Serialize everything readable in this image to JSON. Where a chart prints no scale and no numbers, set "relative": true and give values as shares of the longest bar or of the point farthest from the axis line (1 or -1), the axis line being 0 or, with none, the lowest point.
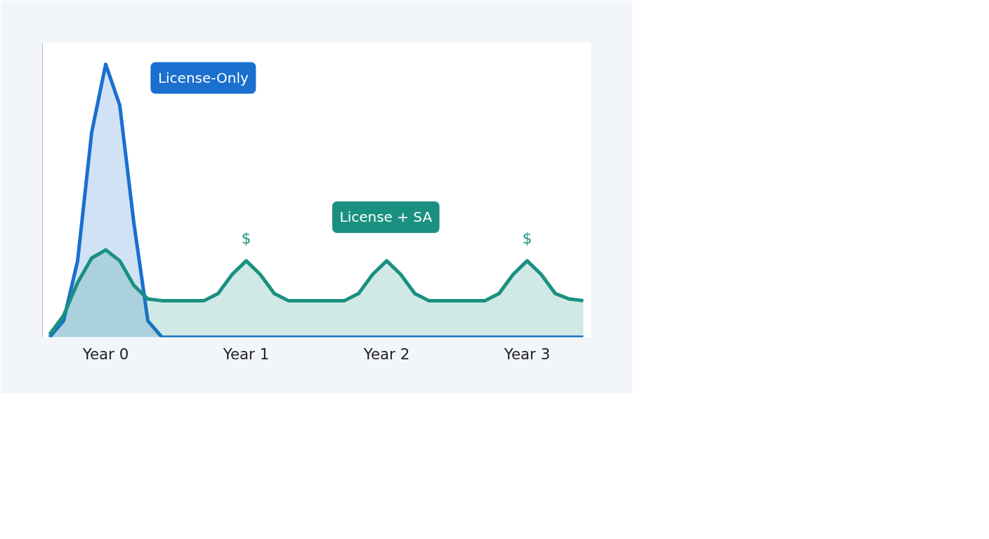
{
  "chart_data": {
    "type": "area",
    "relative": true,
    "categories": [
      null,
      null,
      null,
      null,
      "Year 0",
      null,
      null,
      null,
      null,
      null,
      null,
      null,
      null,
      null,
      "Year 1",
      null,
      null,
      null,
      null,
      null,
      null,
      null,
      null,
      null,
      "Year 2",
      null,
      null,
      null,
      null,
      null,
      null,
      null,
      null,
      null,
      "Year 3",
      null,
      null,
      null,
      null
    ],
    "series": [
      {
        "name": "License-Only",
        "color": "#1a6fcf",
        "values": [
          0,
          0.06,
          0.28,
          0.75,
          1.0,
          0.85,
          0.42,
          0.06,
          0,
          0,
          0,
          0,
          0,
          0,
          0,
          0,
          0,
          0,
          0,
          0,
          0,
          0,
          0,
          0,
          0,
          0,
          0,
          0,
          0,
          0,
          0,
          0,
          0,
          0,
          0,
          0,
          0,
          0,
          0
        ]
      },
      {
        "name": "License + SA",
        "color": "#1a9080",
        "values": [
          0.01,
          0.08,
          0.2,
          0.29,
          0.32,
          0.28,
          0.19,
          0.14,
          0.134,
          0.134,
          0.134,
          0.134,
          0.16,
          0.23,
          0.28,
          0.23,
          0.16,
          0.134,
          0.134,
          0.134,
          0.134,
          0.134,
          0.16,
          0.23,
          0.28,
          0.23,
          0.16,
          0.134,
          0.134,
          0.134,
          0.134,
          0.134,
          0.16,
          0.23,
          0.28,
          0.23,
          0.16,
          0.14,
          0.134
        ]
      }
    ],
    "annotations": [
      "$",
      "$"
    ],
    "grid": false
  }
}
